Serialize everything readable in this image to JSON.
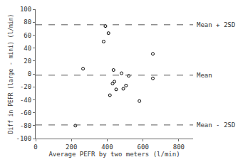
{
  "chart_data": {
    "type": "scatter",
    "x_label": "Average PEFR by two meters (l/min)",
    "y_label": "Diff in PEFR (large - mini) (l/min)",
    "x": [
      390,
      407,
      380,
      655,
      265,
      435,
      480,
      520,
      655,
      440,
      430,
      505,
      490,
      450,
      415,
      580,
      222
    ],
    "values": [
      74,
      63,
      50,
      31,
      8,
      6,
      1,
      -3,
      -7,
      -12,
      -15,
      -18,
      -23,
      -24,
      -33,
      -42,
      -80
    ],
    "color": "#000000",
    "marker": "open-circle",
    "xlim": [
      0,
      880
    ],
    "xticks": [
      0,
      200,
      400,
      600,
      800
    ],
    "ylim": [
      -100,
      100
    ],
    "yticks": [
      -100,
      -80,
      -60,
      -40,
      -20,
      0,
      20,
      40,
      60,
      80,
      100
    ],
    "grid": false,
    "reference_lines": [
      {
        "value": 76,
        "label": "Mean + 2SD",
        "line_style": "dash"
      },
      {
        "value": -2,
        "label": "Mean",
        "line_style": "dash"
      },
      {
        "value": -79,
        "label": "Mean - 2SD",
        "line_style": "dash"
      }
    ]
  }
}
